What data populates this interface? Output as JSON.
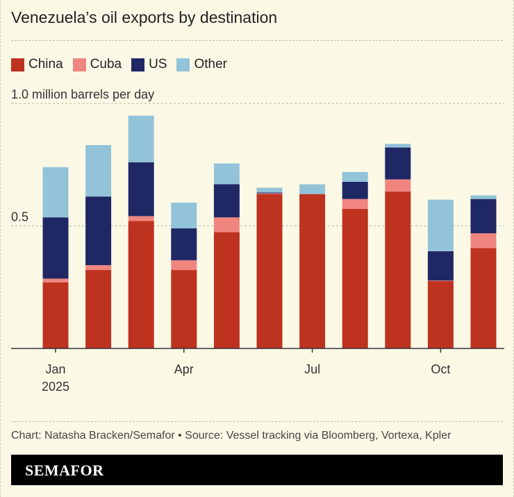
{
  "title": "Venezuela’s oil exports by destination",
  "source": "Chart: Natasha Bracken/Semafor • Source: Vessel tracking via Bloomberg, Vortexa, Kpler",
  "brand": "SEMAFOR",
  "chart_data": {
    "type": "bar",
    "stacked": true,
    "ylabel": "1.0 million barrels per day",
    "ylim": [
      0,
      1.0
    ],
    "y_ticks": [
      {
        "value": 0.5,
        "label": "0.5"
      },
      {
        "value": 1.0,
        "label": "1.0 million barrels per day"
      }
    ],
    "grid": true,
    "legend_position": "top-left",
    "categories": [
      "2025-01",
      "2025-02",
      "2025-03",
      "2025-04",
      "2025-05",
      "2025-06",
      "2025-07",
      "2025-08",
      "2025-09",
      "2025-10",
      "2025-11"
    ],
    "x_tick_labels": [
      {
        "category": "2025-01",
        "label": "Jan",
        "sublabel": "2025"
      },
      {
        "category": "2025-04",
        "label": "Apr"
      },
      {
        "category": "2025-07",
        "label": "Jul"
      },
      {
        "category": "2025-10",
        "label": "Oct"
      }
    ],
    "series": [
      {
        "name": "China",
        "color": "#BE3220",
        "values": [
          0.27,
          0.32,
          0.52,
          0.32,
          0.475,
          0.63,
          0.63,
          0.57,
          0.64,
          0.275,
          0.41
        ]
      },
      {
        "name": "Cuba",
        "color": "#F08580",
        "values": [
          0.015,
          0.02,
          0.02,
          0.04,
          0.06,
          0.003,
          0,
          0.04,
          0.05,
          0.002,
          0.06
        ]
      },
      {
        "name": "US",
        "color": "#1F2865",
        "values": [
          0.25,
          0.28,
          0.22,
          0.13,
          0.135,
          0.003,
          0,
          0.07,
          0.13,
          0.12,
          0.14
        ]
      },
      {
        "name": "Other",
        "color": "#93C3D9",
        "values": [
          0.205,
          0.21,
          0.19,
          0.105,
          0.085,
          0.02,
          0.04,
          0.04,
          0.015,
          0.21,
          0.015
        ]
      }
    ]
  }
}
